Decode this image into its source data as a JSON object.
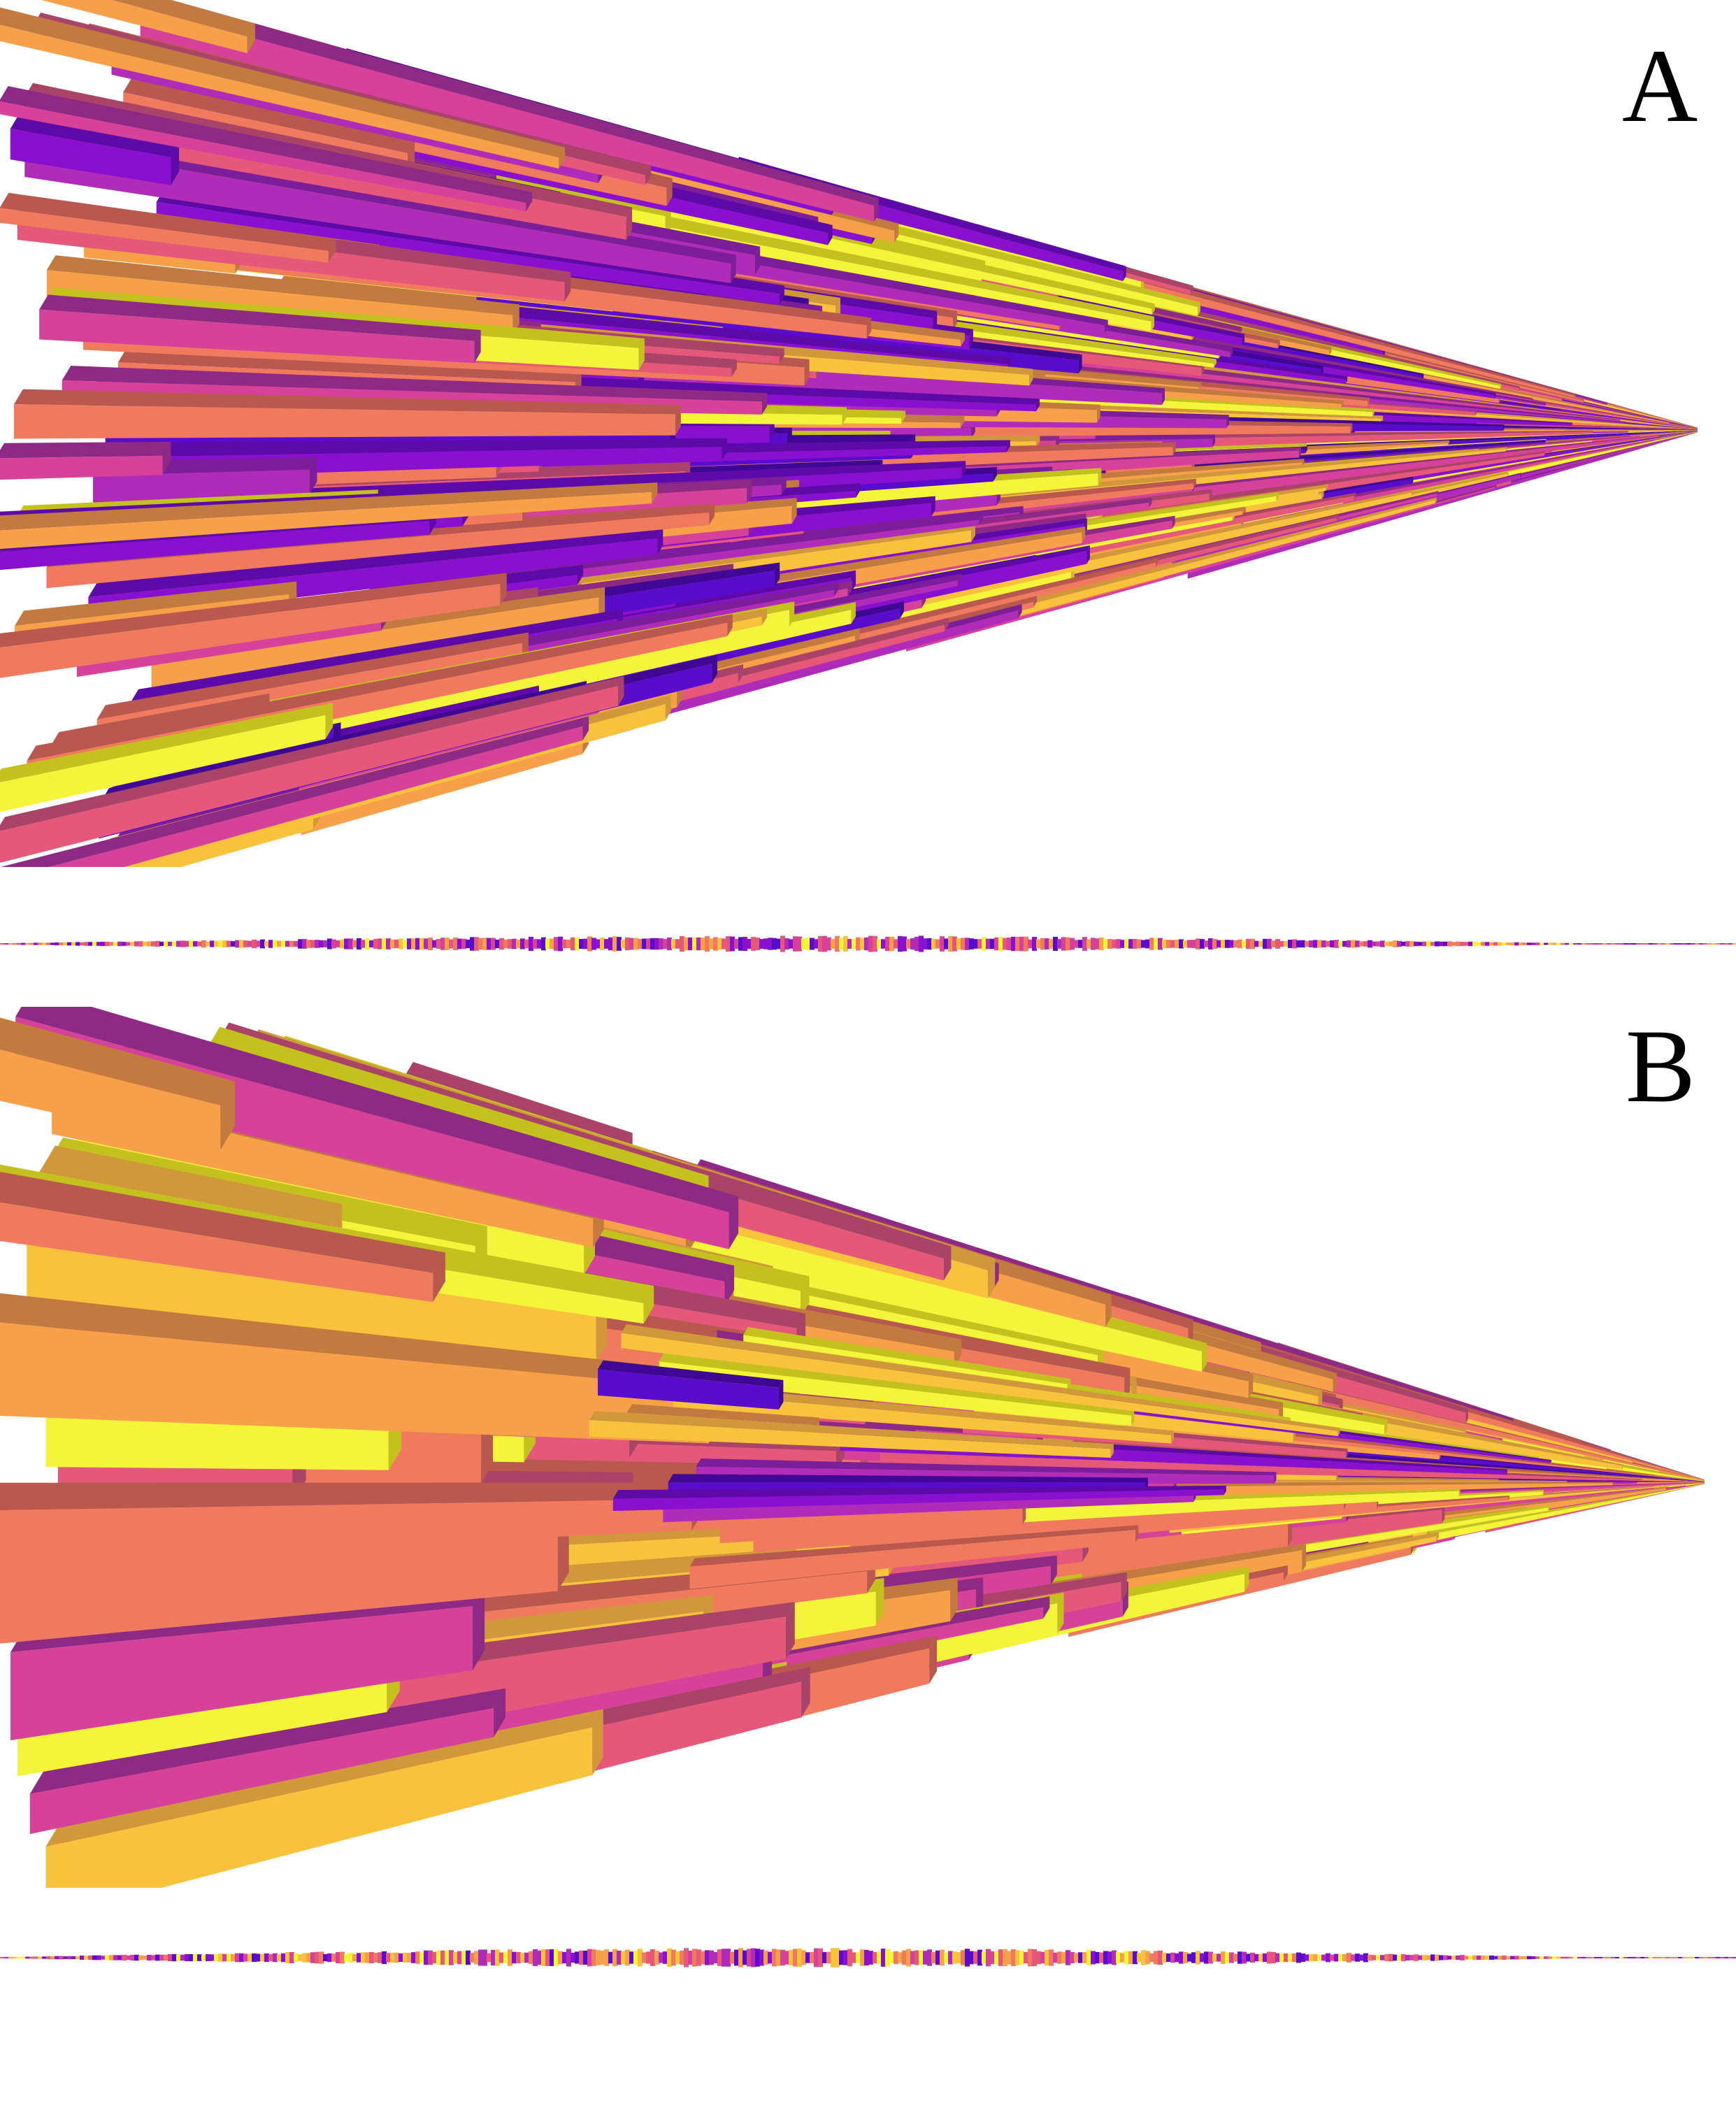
{
  "panels": [
    {
      "label": "A"
    },
    {
      "label": "B"
    }
  ],
  "palette": [
    "#f4f53a",
    "#f9c23c",
    "#f6a04a",
    "#f07a5e",
    "#e5587a",
    "#d6429a",
    "#b02cb8",
    "#8a10d0",
    "#5a0ccc"
  ],
  "shade_palette": [
    "#c4c11e",
    "#d0983a",
    "#c27a3e",
    "#b8584e",
    "#a94468",
    "#8e2a86",
    "#7c1e9a",
    "#5e0aa8",
    "#3e0894"
  ]
}
